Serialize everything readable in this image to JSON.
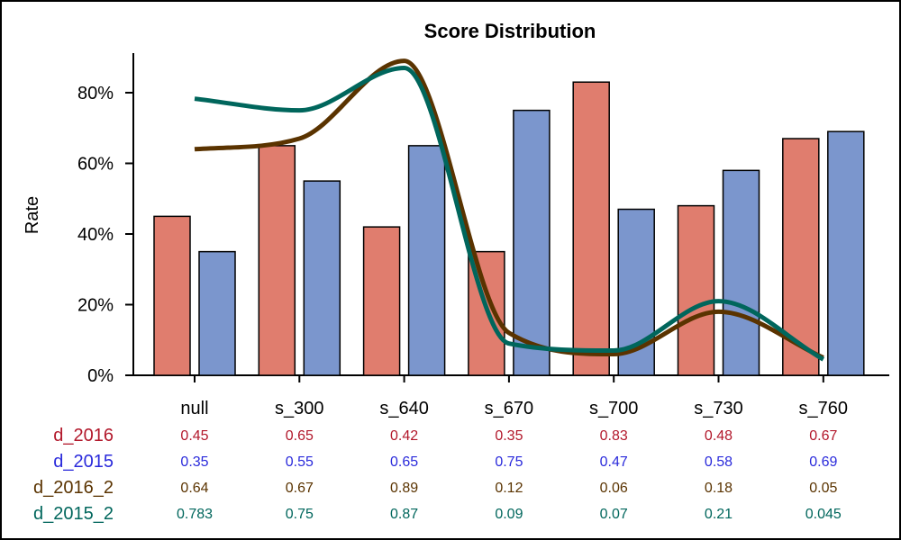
{
  "chart_data": {
    "type": "bar",
    "title": "Score Distribution",
    "xlabel": "",
    "ylabel": "Rate",
    "ylim": [
      0,
      0.92
    ],
    "yticks": [
      0,
      0.2,
      0.4,
      0.6,
      0.8
    ],
    "ytick_labels": [
      "0%",
      "20%",
      "40%",
      "60%",
      "80%"
    ],
    "categories": [
      "null",
      "s_300",
      "s_640",
      "s_670",
      "s_700",
      "s_730",
      "s_760"
    ],
    "grid": false,
    "legend": "none (data table below axis)",
    "series": [
      {
        "name": "d_2016",
        "kind": "bar",
        "color": "#E07D6E",
        "label_color": "#B2182B",
        "values": [
          0.45,
          0.65,
          0.42,
          0.35,
          0.83,
          0.48,
          0.67
        ],
        "labels": [
          "0.45",
          "0.65",
          "0.42",
          "0.35",
          "0.83",
          "0.48",
          "0.67"
        ]
      },
      {
        "name": "d_2015",
        "kind": "bar",
        "color": "#7B96CD",
        "label_color": "#2A2ADB",
        "values": [
          0.35,
          0.55,
          0.65,
          0.75,
          0.47,
          0.58,
          0.69
        ],
        "labels": [
          "0.35",
          "0.55",
          "0.65",
          "0.75",
          "0.47",
          "0.58",
          "0.69"
        ]
      },
      {
        "name": "d_2016_2",
        "kind": "spline",
        "color": "#5A3300",
        "label_color": "#5A3300",
        "values": [
          0.64,
          0.67,
          0.89,
          0.12,
          0.06,
          0.18,
          0.05
        ],
        "labels": [
          "0.64",
          "0.67",
          "0.89",
          "0.12",
          "0.06",
          "0.18",
          "0.05"
        ]
      },
      {
        "name": "d_2015_2",
        "kind": "spline",
        "color": "#00665C",
        "label_color": "#00665C",
        "values": [
          0.783,
          0.75,
          0.87,
          0.09,
          0.07,
          0.21,
          0.045
        ],
        "labels": [
          "0.783",
          "0.75",
          "0.87",
          "0.09",
          "0.07",
          "0.21",
          "0.045"
        ]
      }
    ]
  }
}
